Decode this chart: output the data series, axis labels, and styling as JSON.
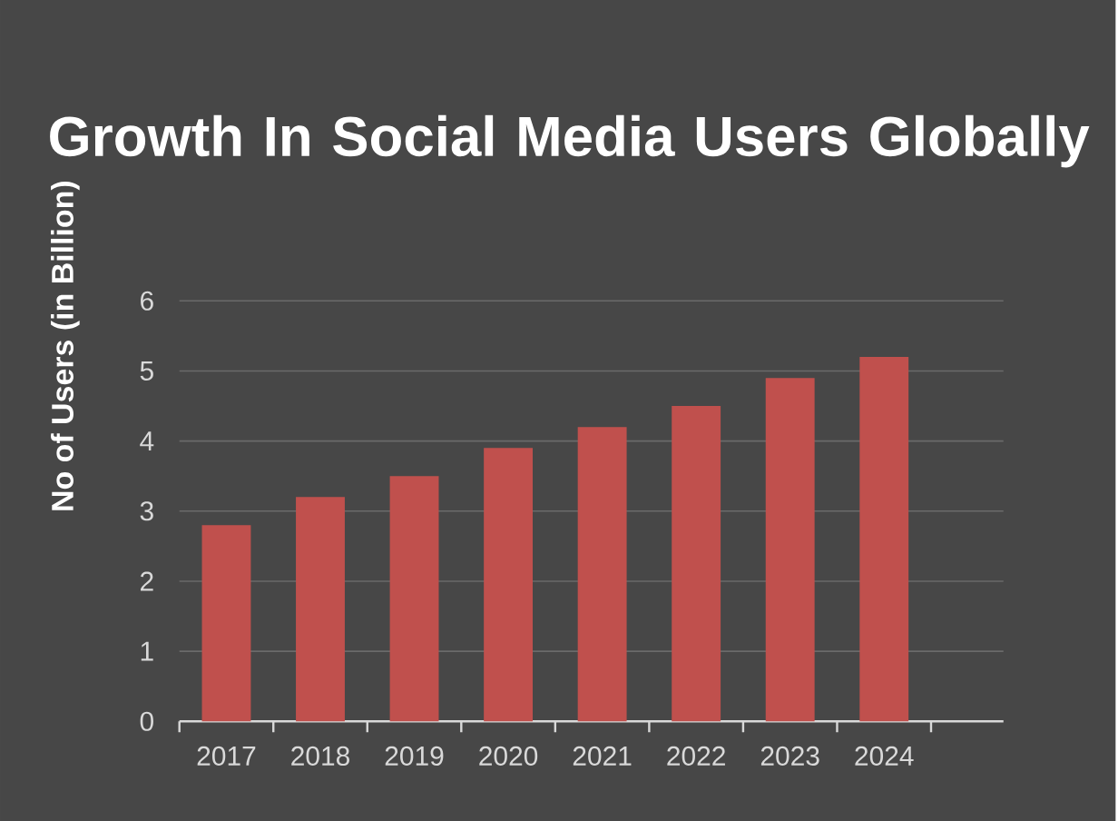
{
  "chart_data": {
    "type": "bar",
    "title": "Growth In Social Media Users Globally",
    "ylabel": "No of Users (in Billion)",
    "categories": [
      "2017",
      "2018",
      "2019",
      "2020",
      "2021",
      "2022",
      "2023",
      "2024"
    ],
    "values": [
      2.8,
      3.2,
      3.5,
      3.9,
      4.2,
      4.5,
      4.9,
      5.2
    ],
    "color": "#c0504d",
    "ylim": [
      0,
      6
    ],
    "yticks": [
      0,
      1,
      2,
      3,
      4,
      5,
      6
    ],
    "grid": "y"
  }
}
